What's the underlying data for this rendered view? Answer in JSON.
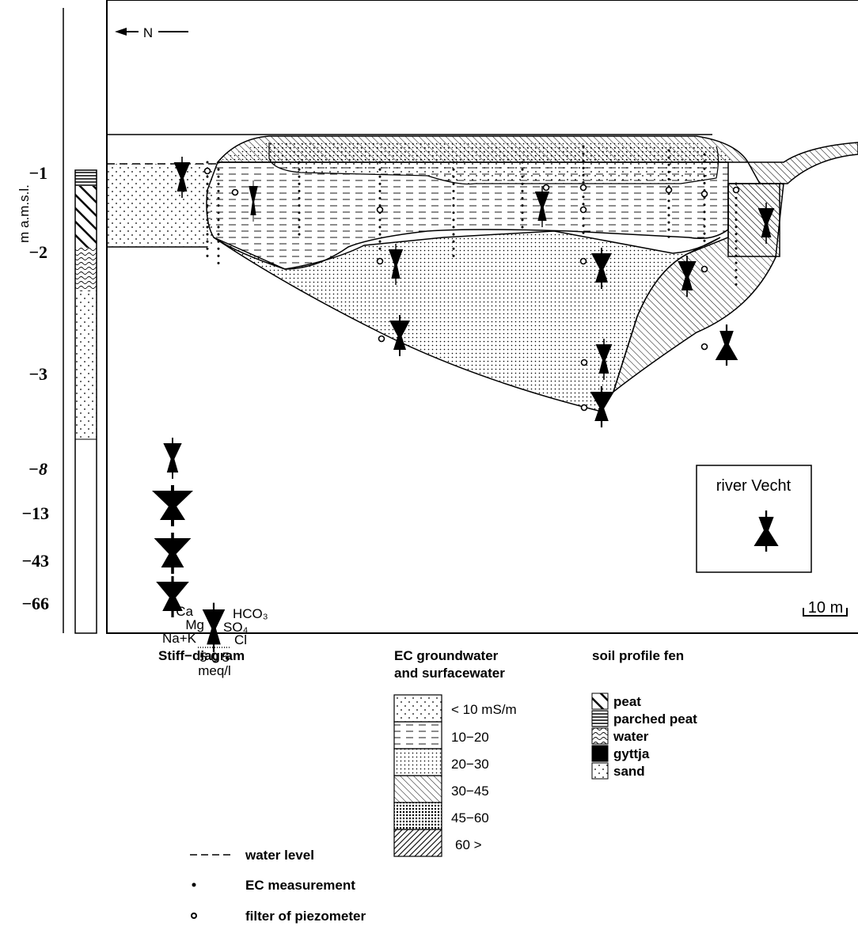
{
  "north_arrow": "N",
  "axis": {
    "label": "m a.m.s.l.",
    "depths": [
      "−1",
      "−2",
      "−3",
      "−8",
      "−13",
      "−43",
      "−66"
    ]
  },
  "inset": "river Vecht",
  "scale": "10 m",
  "legend": {
    "stiff": {
      "title": "Stiff−diagram",
      "left": [
        "Ca",
        "Mg",
        "Na+K"
      ],
      "right": [
        "HCO₃",
        "SO₄",
        "Cl"
      ],
      "scale": "5 0 5",
      "unit": "meq/l"
    },
    "ec": {
      "title": [
        "EC groundwater",
        "and surfacewater"
      ],
      "classes": [
        "< 10 mS/m",
        "10−20",
        "20−30",
        "30−45",
        "45−60",
        "60 >"
      ]
    },
    "soil": {
      "title": "soil profile fen",
      "items": [
        "peat",
        "parched peat",
        "water",
        "gyttja",
        "sand"
      ]
    },
    "symbols": [
      "water level",
      "EC measurement",
      "filter of piezometer"
    ]
  }
}
